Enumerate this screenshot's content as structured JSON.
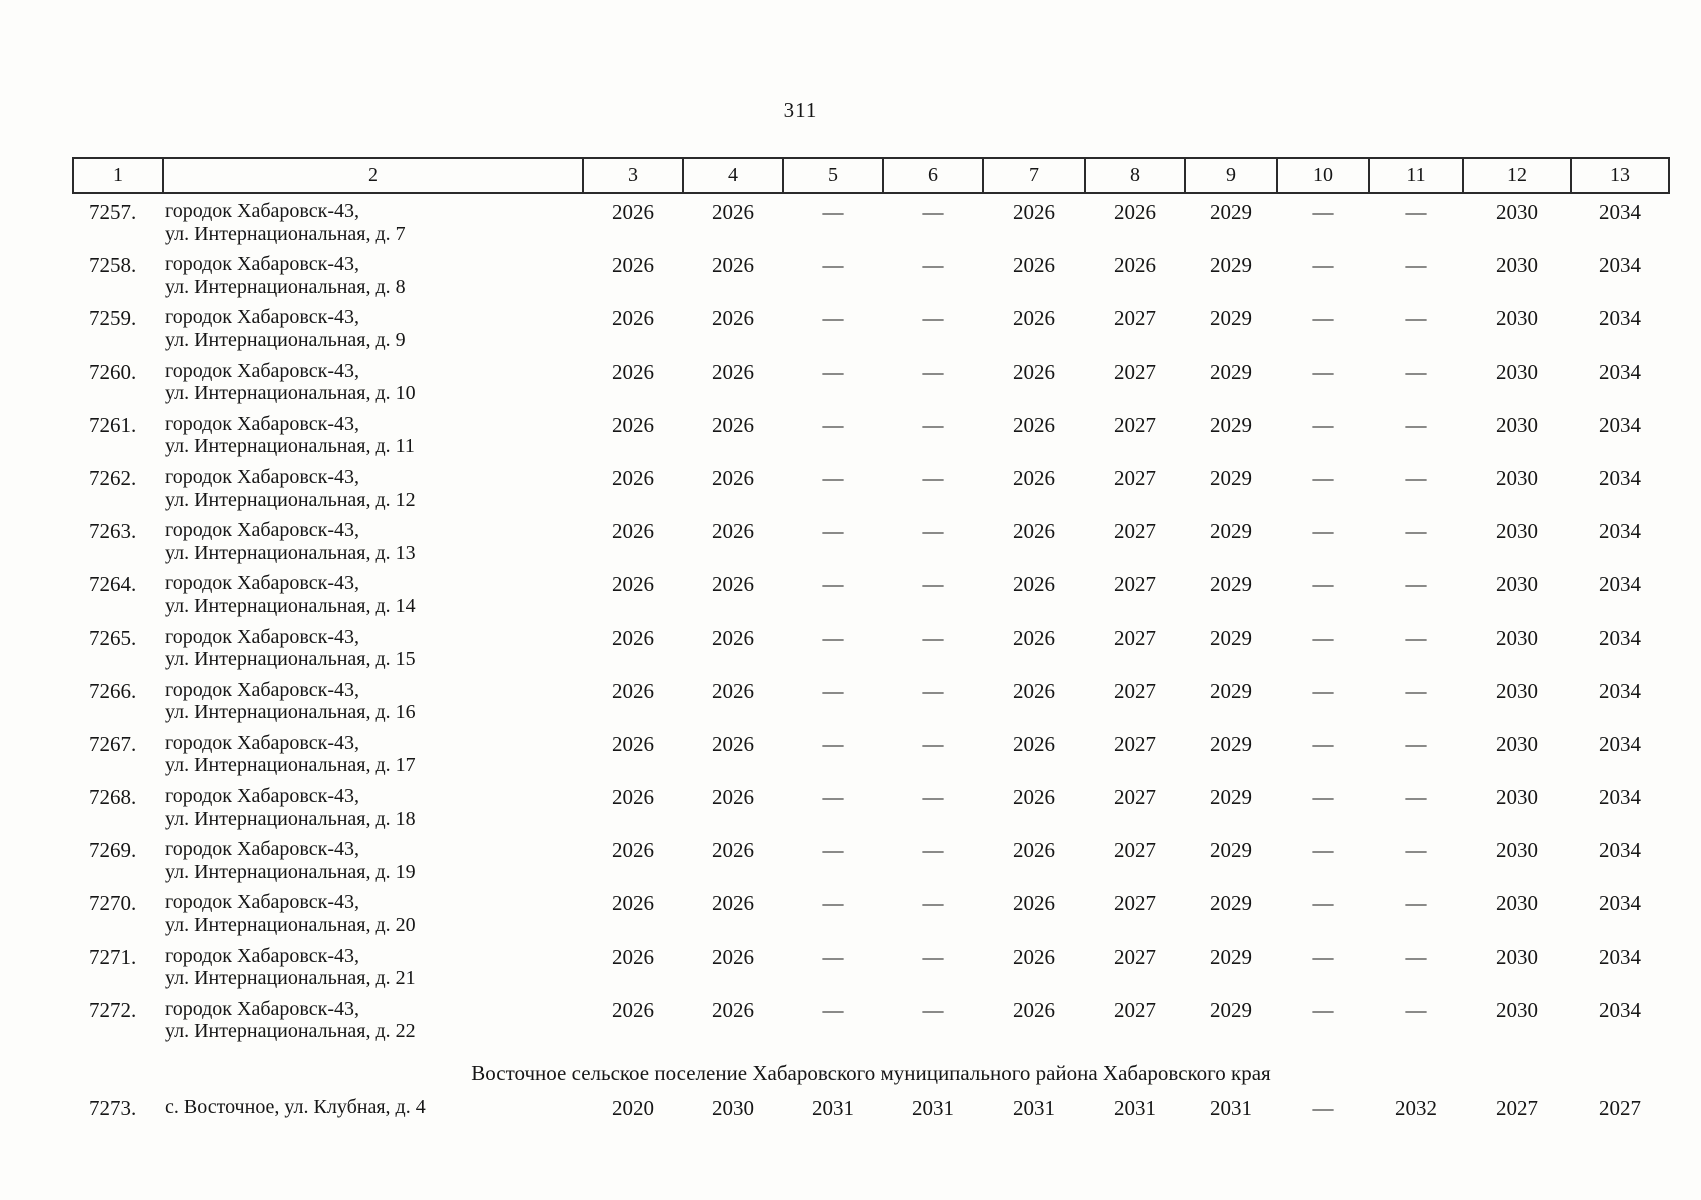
{
  "page": {
    "number": "311"
  },
  "table": {
    "header": [
      "1",
      "2",
      "3",
      "4",
      "5",
      "6",
      "7",
      "8",
      "9",
      "10",
      "11",
      "12",
      "13"
    ],
    "rows": [
      {
        "type": "data",
        "num": "7257.",
        "address": "городок Хабаровск-43,\nул. Интернациональная, д. 7",
        "values": [
          "2026",
          "2026",
          "—",
          "—",
          "2026",
          "2026",
          "2029",
          "—",
          "—",
          "2030",
          "2034"
        ]
      },
      {
        "type": "data",
        "num": "7258.",
        "address": "городок Хабаровск-43,\nул. Интернациональная, д. 8",
        "values": [
          "2026",
          "2026",
          "—",
          "—",
          "2026",
          "2026",
          "2029",
          "—",
          "—",
          "2030",
          "2034"
        ]
      },
      {
        "type": "data",
        "num": "7259.",
        "address": "городок Хабаровск-43,\nул. Интернациональная, д. 9",
        "values": [
          "2026",
          "2026",
          "—",
          "—",
          "2026",
          "2027",
          "2029",
          "—",
          "—",
          "2030",
          "2034"
        ]
      },
      {
        "type": "data",
        "num": "7260.",
        "address": "городок Хабаровск-43,\nул. Интернациональная, д. 10",
        "values": [
          "2026",
          "2026",
          "—",
          "—",
          "2026",
          "2027",
          "2029",
          "—",
          "—",
          "2030",
          "2034"
        ]
      },
      {
        "type": "data",
        "num": "7261.",
        "address": "городок Хабаровск-43,\nул. Интернациональная, д. 11",
        "values": [
          "2026",
          "2026",
          "—",
          "—",
          "2026",
          "2027",
          "2029",
          "—",
          "—",
          "2030",
          "2034"
        ]
      },
      {
        "type": "data",
        "num": "7262.",
        "address": "городок Хабаровск-43,\nул. Интернациональная, д. 12",
        "values": [
          "2026",
          "2026",
          "—",
          "—",
          "2026",
          "2027",
          "2029",
          "—",
          "—",
          "2030",
          "2034"
        ]
      },
      {
        "type": "data",
        "num": "7263.",
        "address": "городок Хабаровск-43,\nул. Интернациональная, д. 13",
        "values": [
          "2026",
          "2026",
          "—",
          "—",
          "2026",
          "2027",
          "2029",
          "—",
          "—",
          "2030",
          "2034"
        ]
      },
      {
        "type": "data",
        "num": "7264.",
        "address": "городок Хабаровск-43,\nул. Интернациональная, д. 14",
        "values": [
          "2026",
          "2026",
          "—",
          "—",
          "2026",
          "2027",
          "2029",
          "—",
          "—",
          "2030",
          "2034"
        ]
      },
      {
        "type": "data",
        "num": "7265.",
        "address": "городок Хабаровск-43,\nул. Интернациональная, д. 15",
        "values": [
          "2026",
          "2026",
          "—",
          "—",
          "2026",
          "2027",
          "2029",
          "—",
          "—",
          "2030",
          "2034"
        ]
      },
      {
        "type": "data",
        "num": "7266.",
        "address": "городок Хабаровск-43,\nул. Интернациональная, д. 16",
        "values": [
          "2026",
          "2026",
          "—",
          "—",
          "2026",
          "2027",
          "2029",
          "—",
          "—",
          "2030",
          "2034"
        ]
      },
      {
        "type": "data",
        "num": "7267.",
        "address": "городок Хабаровск-43,\nул. Интернациональная, д. 17",
        "values": [
          "2026",
          "2026",
          "—",
          "—",
          "2026",
          "2027",
          "2029",
          "—",
          "—",
          "2030",
          "2034"
        ]
      },
      {
        "type": "data",
        "num": "7268.",
        "address": "городок Хабаровск-43,\nул. Интернациональная, д. 18",
        "values": [
          "2026",
          "2026",
          "—",
          "—",
          "2026",
          "2027",
          "2029",
          "—",
          "—",
          "2030",
          "2034"
        ]
      },
      {
        "type": "data",
        "num": "7269.",
        "address": "городок Хабаровск-43,\nул. Интернациональная, д. 19",
        "values": [
          "2026",
          "2026",
          "—",
          "—",
          "2026",
          "2027",
          "2029",
          "—",
          "—",
          "2030",
          "2034"
        ]
      },
      {
        "type": "data",
        "num": "7270.",
        "address": "городок Хабаровск-43,\nул. Интернациональная, д. 20",
        "values": [
          "2026",
          "2026",
          "—",
          "—",
          "2026",
          "2027",
          "2029",
          "—",
          "—",
          "2030",
          "2034"
        ]
      },
      {
        "type": "data",
        "num": "7271.",
        "address": "городок Хабаровск-43,\nул. Интернациональная, д. 21",
        "values": [
          "2026",
          "2026",
          "—",
          "—",
          "2026",
          "2027",
          "2029",
          "—",
          "—",
          "2030",
          "2034"
        ]
      },
      {
        "type": "data",
        "num": "7272.",
        "address": "городок Хабаровск-43,\nул. Интернациональная, д. 22",
        "values": [
          "2026",
          "2026",
          "—",
          "—",
          "2026",
          "2027",
          "2029",
          "—",
          "—",
          "2030",
          "2034"
        ]
      },
      {
        "type": "section",
        "text": "Восточное сельское поселение Хабаровского муниципального района Хабаровского края"
      },
      {
        "type": "data",
        "single": true,
        "num": "7273.",
        "address": "с. Восточное, ул. Клубная, д. 4",
        "values": [
          "2020",
          "2030",
          "2031",
          "2031",
          "2031",
          "2031",
          "2031",
          "—",
          "2032",
          "2027",
          "2027"
        ]
      }
    ]
  }
}
